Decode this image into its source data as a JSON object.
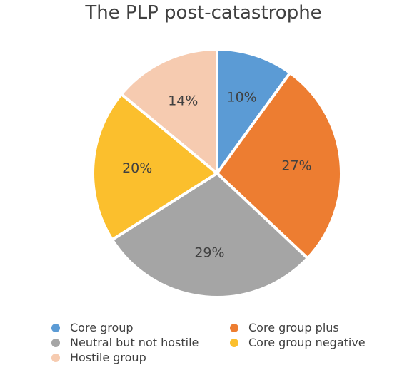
{
  "chart_data": {
    "type": "pie",
    "title": "The PLP post-catastrophe",
    "slices": [
      {
        "label": "Core group",
        "value": 10,
        "value_label": "10%",
        "color": "#5B9BD5"
      },
      {
        "label": "Core group plus",
        "value": 27,
        "value_label": "27%",
        "color": "#ED7D31"
      },
      {
        "label": "Neutral but not hostile",
        "value": 29,
        "value_label": "29%",
        "color": "#A5A5A5"
      },
      {
        "label": "Core group negative",
        "value": 20,
        "value_label": "20%",
        "color": "#FBBF2D"
      },
      {
        "label": "Hostile group",
        "value": 14,
        "value_label": "14%",
        "color": "#F6CBB0"
      }
    ],
    "start_angle_deg": 0,
    "direction": "clockwise",
    "legend_position": "bottom"
  }
}
